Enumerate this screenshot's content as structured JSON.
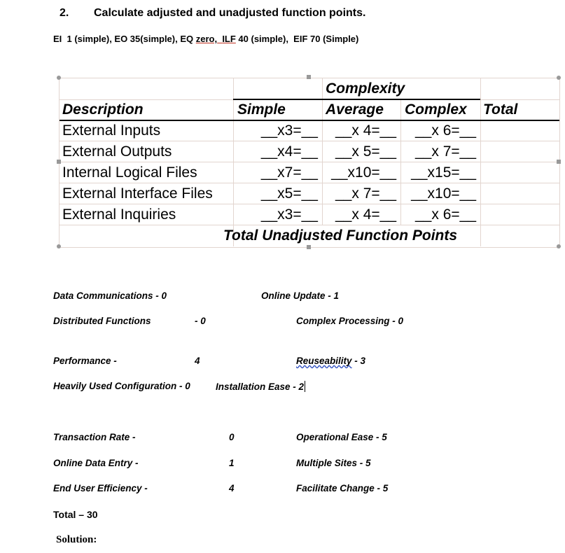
{
  "question": {
    "number": "2.",
    "title": "Calculate adjusted and unadjusted function points."
  },
  "given": {
    "pre": "EI  1 (simple), EO 35(simple), EQ ",
    "eq": "zero,",
    "mid": "  ",
    "ilf": "ILF",
    "post": " 40 (simple),  EIF 70 (Simple)"
  },
  "table": {
    "complexity_header": "Complexity",
    "headers": [
      "Description",
      "Simple",
      "Average",
      "Complex",
      "Total"
    ],
    "rows": [
      {
        "description": "External Inputs",
        "simple": "__x3=__",
        "average": "__x 4=__",
        "complex": "__x 6=__"
      },
      {
        "description": "External Outputs",
        "simple": "__x4=__",
        "average": "__x 5=__",
        "complex": "__x 7=__"
      },
      {
        "description": "Internal Logical Files",
        "simple": "__x7=__",
        "average": "__x10=__",
        "complex": "__x15=__"
      },
      {
        "description": "External Interface Files",
        "simple": "__x5=__",
        "average": "__x 7=__",
        "complex": "__x10=__"
      },
      {
        "description": "External Inquiries",
        "simple": "__x3=__",
        "average": "__x 4=__",
        "complex": "__x 6=__"
      }
    ],
    "total_label": "Total Unadjusted Function Points"
  },
  "factors": {
    "data_comm": "Data Communications - 0",
    "online_update": "Online Update - 1",
    "distributed": "Distributed Functions",
    "distributed_val": "- 0",
    "complex_proc": "Complex Processing - 0",
    "performance": "Performance -",
    "performance_val": "4",
    "reuse": "Reuseability",
    "reuse_val": " - 3",
    "heavy": "Heavily Used Configuration - 0",
    "install": "Installation Ease - 2",
    "transaction": "Transaction Rate -",
    "transaction_val": "0",
    "operational": "Operational Ease - 5",
    "online_entry": "Online Data Entry -",
    "online_entry_val": "1",
    "multiple_sites": "Multiple Sites - 5",
    "end_user": "End User Efficiency -",
    "end_user_val": "4",
    "facilitate": "Facilitate Change - 5"
  },
  "total": "Total – 30",
  "solution": "Solution:"
}
